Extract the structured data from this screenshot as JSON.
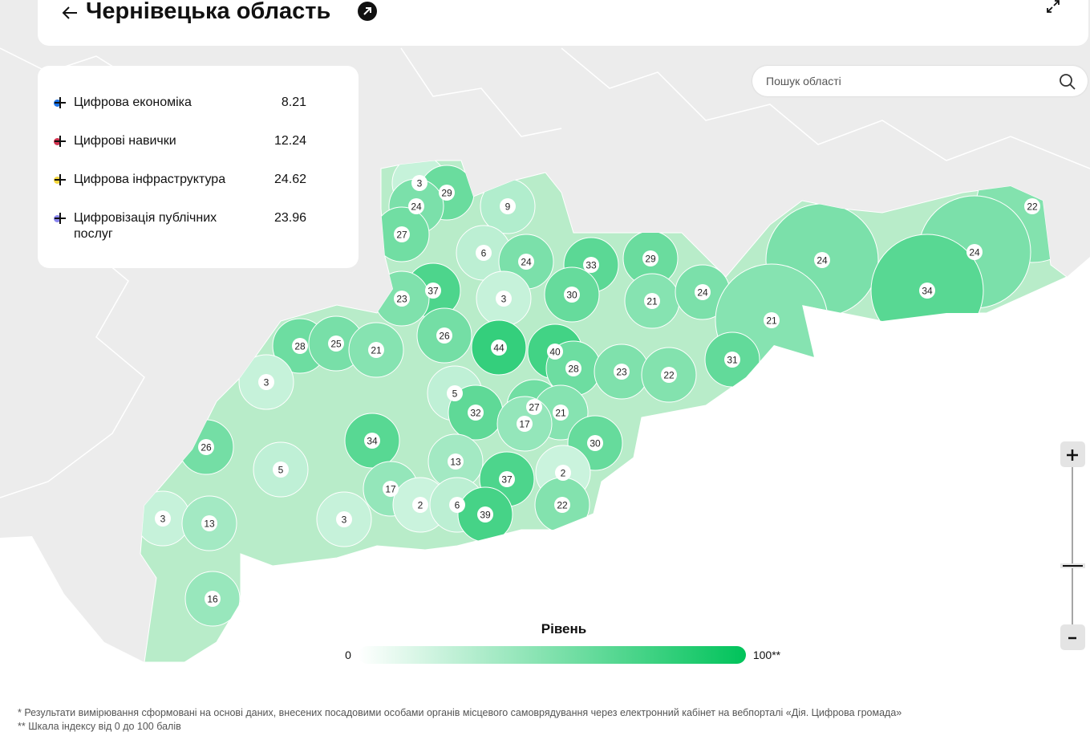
{
  "header": {
    "title": "Чернівецька область"
  },
  "indicators": [
    {
      "name": "Цифрова економіка",
      "value": 8.21,
      "color": "#1a73e8"
    },
    {
      "name": "Цифрові навички",
      "value": 12.24,
      "color": "#d0334f"
    },
    {
      "name": "Цифрова інфраструктура",
      "value": 24.62,
      "color": "#f5d63d"
    },
    {
      "name": "Цифровізація публічних послуг",
      "value": 23.96,
      "color": "#8a86f0"
    }
  ],
  "search": {
    "placeholder": "Пошук області"
  },
  "regions": [
    3,
    29,
    24,
    9,
    22,
    27,
    6,
    24,
    33,
    29,
    24,
    24,
    37,
    23,
    3,
    30,
    21,
    24,
    34,
    21,
    28,
    25,
    21,
    26,
    44,
    40,
    28,
    23,
    22,
    31,
    3,
    5,
    27,
    21,
    32,
    17,
    26,
    34,
    30,
    5,
    13,
    2,
    37,
    17,
    2,
    6,
    22,
    39,
    3,
    13,
    3,
    16
  ],
  "color_scale": {
    "title": "Рівень",
    "min": 0,
    "max": {
      "value": 100,
      "label": "100**"
    },
    "colors": [
      "#ffffff",
      "#00c35a"
    ]
  },
  "footnotes": [
    "* Результати вимірювання сформовані на основі даних, внесених посадовими особами органів місцевого самоврядування через електронний кабінет на вебпорталі «Дія. Цифрова громада»",
    "** Шкала індексу від 0 до 100 балів"
  ]
}
